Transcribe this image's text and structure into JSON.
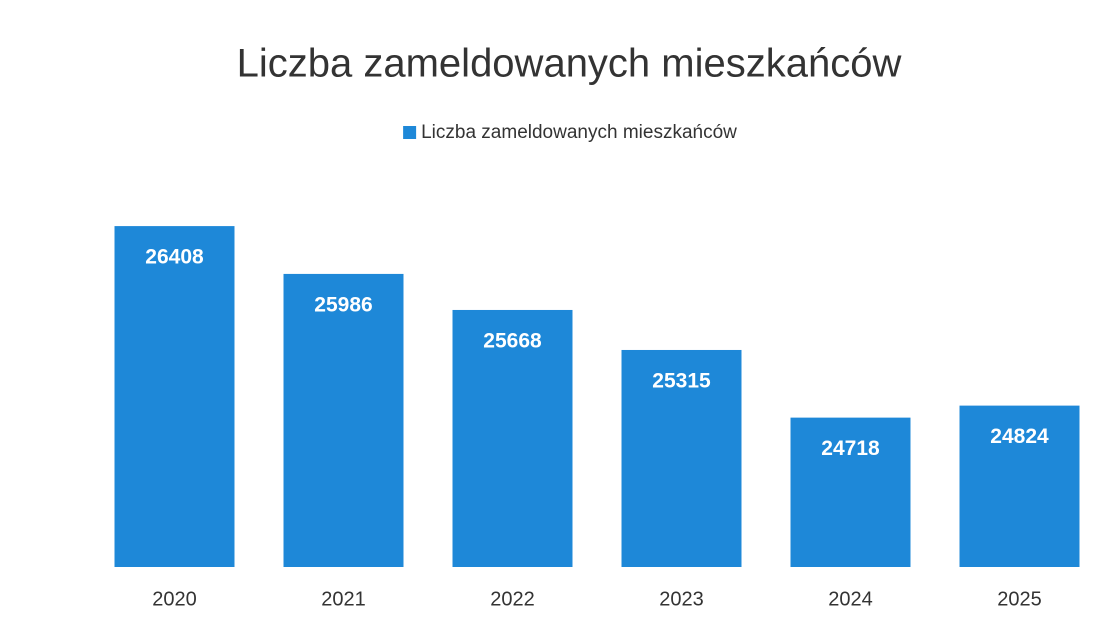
{
  "chart_data": {
    "type": "bar",
    "title": "Liczba zameldowanych mieszkańców",
    "legend": "Liczba zameldowanych mieszkańców",
    "categories": [
      "2020",
      "2021",
      "2022",
      "2023",
      "2024",
      "2025"
    ],
    "values": [
      26408,
      25986,
      25668,
      25315,
      24718,
      24824
    ],
    "color": "#1e88d8",
    "ylim": [
      23400,
      27000
    ]
  }
}
